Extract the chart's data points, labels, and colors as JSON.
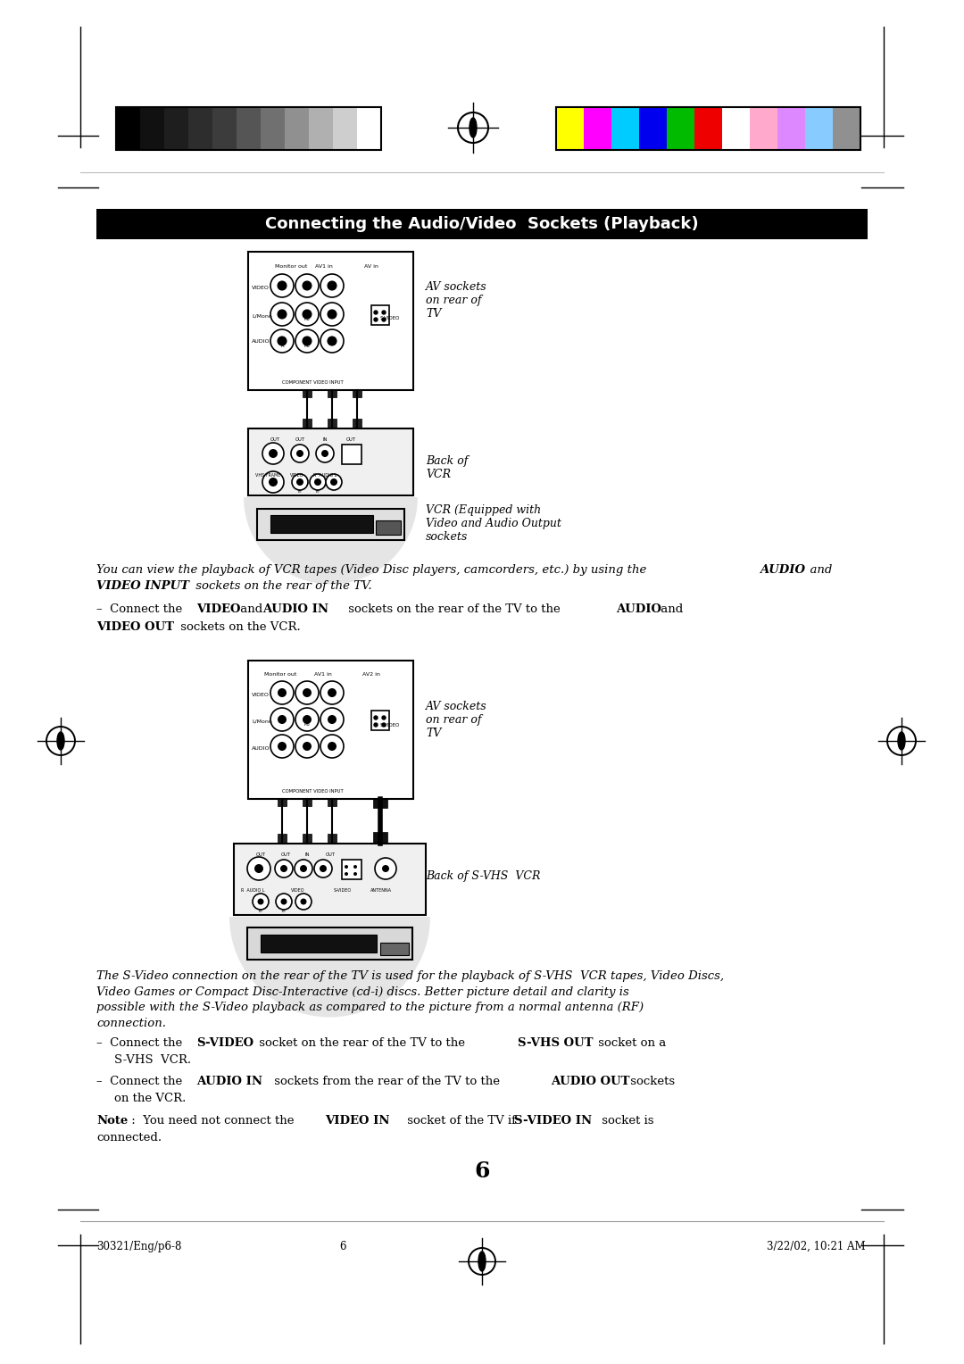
{
  "page_width": 10.8,
  "page_height": 15.28,
  "bg_color": "#ffffff",
  "grayscale_colors": [
    "#000000",
    "#111111",
    "#1e1e1e",
    "#2d2d2d",
    "#3c3c3c",
    "#555555",
    "#707070",
    "#909090",
    "#b0b0b0",
    "#cecece",
    "#ffffff"
  ],
  "color_bars": [
    "#ffff00",
    "#ff00ff",
    "#00ccff",
    "#0000ee",
    "#00bb00",
    "#ee0000",
    "#ffffff",
    "#ffaacc",
    "#dd88ff",
    "#88ccff",
    "#909090"
  ],
  "title": "Connecting the Audio/Video  Sockets (Playback)",
  "title_bg": "#000000",
  "title_color": "#ffffff",
  "body_text_1a": "You can view the playback of VCR tapes (Video Disc players, camcorders, etc.) by using the ",
  "body_text_1b": "AUDIO",
  "body_text_1c": "  and",
  "body_text_1d": "VIDEO INPUT",
  "body_text_1e": " sockets on the rear of the TV.",
  "body_text_3": "The S-Video connection on the rear of the TV is used for the playback of S-VHS  VCR tapes, Video Discs,\nVideo Games or Compact Disc-Interactive (cd-i) discs. Better picture detail and clarity is\npossible with the S-Video playback as compared to the picture from a normal antenna (RF)\nconnection.",
  "page_number": "6",
  "footer_left": "30321/Eng/p6-8",
  "footer_center": "6",
  "footer_right": "3/22/02, 10:21 AM",
  "label_av_sockets_1": "AV sockets\non rear of\nTV",
  "label_back_vcr": "Back of\nVCR",
  "label_vcr_equipped": "VCR (Equipped with\nVideo and Audio Output\nsockets",
  "label_av_sockets_2": "AV sockets\non rear of\nTV",
  "label_back_svhs": "Back of S-VHS  VCR"
}
